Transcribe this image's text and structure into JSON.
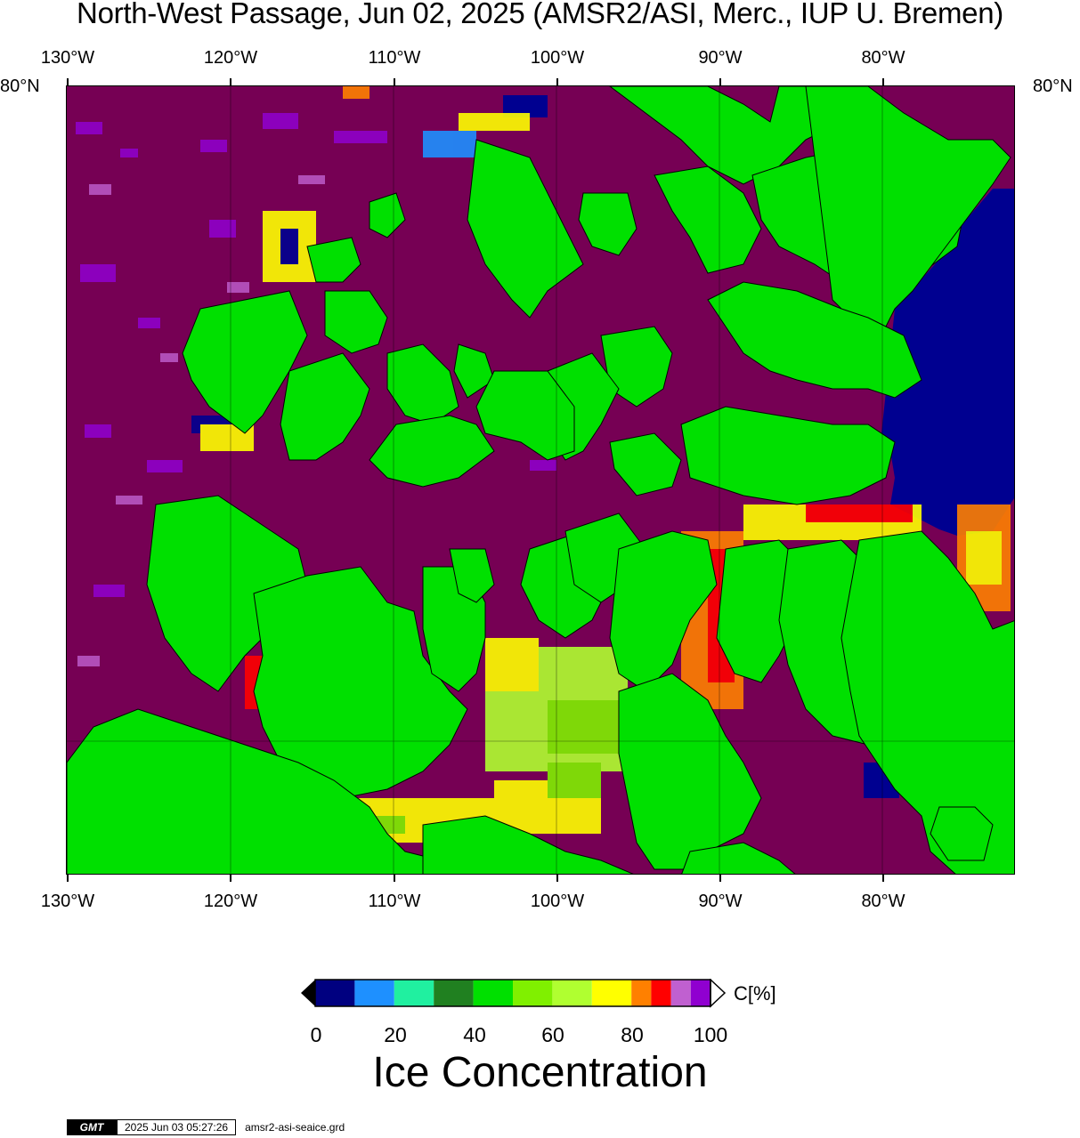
{
  "title": "North-West Passage, Jun 02, 2025 (AMSR2/ASI, Merc., IUP U. Bremen)",
  "axes": {
    "longitude_labels": [
      "130°W",
      "120°W",
      "110°W",
      "100°W",
      "90°W",
      "80°W"
    ],
    "latitude_label_left": "80°N",
    "latitude_label_right": "80°N"
  },
  "colorbar": {
    "tick_labels": [
      "0",
      "20",
      "40",
      "60",
      "80",
      "100"
    ],
    "unit": "C[%]",
    "title": "Ice Concentration",
    "colors": [
      "#000080",
      "#1e90ff",
      "#20f0a0",
      "#208020",
      "#00e000",
      "#80f000",
      "#b0ff30",
      "#ffff00",
      "#ff8000",
      "#ff0000",
      "#c060d0",
      "#9000d0"
    ]
  },
  "footer": {
    "logo_text": "GMT",
    "timestamp": "2025 Jun 03 05:27:26",
    "filename": "amsr2-asi-seaice.grd"
  },
  "map_colors": {
    "land": "#00e000",
    "full_ice": "#760054",
    "open_water": "#000090"
  }
}
